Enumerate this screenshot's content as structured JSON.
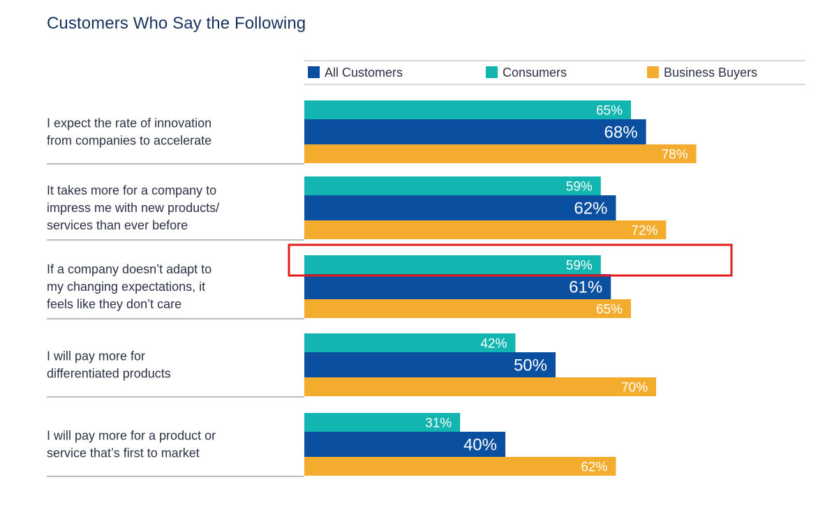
{
  "chart_data": {
    "type": "bar",
    "orientation": "horizontal",
    "title": "Customers Who Say the Following",
    "xlim": [
      0,
      100
    ],
    "categories": [
      [
        "I expect the rate of innovation",
        "from companies to accelerate"
      ],
      [
        "It takes more for a company to",
        "impress me with new products/",
        "services than ever before"
      ],
      [
        "If a company doesn’t adapt to",
        "my changing expectations, it",
        "feels like they don’t care"
      ],
      [
        "I will pay more for",
        "differentiated products"
      ],
      [
        "I will pay more for a product or",
        "service that’s first to market"
      ]
    ],
    "series": [
      {
        "name": "Consumers",
        "color": "#12b5b0",
        "values": [
          65,
          59,
          59,
          42,
          31
        ]
      },
      {
        "name": "All Customers",
        "color": "#0b4fa1",
        "values": [
          68,
          62,
          61,
          50,
          40
        ]
      },
      {
        "name": "Business Buyers",
        "color": "#f4ac2f",
        "values": [
          78,
          72,
          65,
          70,
          62
        ]
      }
    ],
    "legend": [
      {
        "name": "All Customers",
        "color": "#0b4fa1"
      },
      {
        "name": "Consumers",
        "color": "#12b5b0"
      },
      {
        "name": "Business Buyers",
        "color": "#f4ac2f"
      }
    ],
    "value_suffix": "%",
    "highlight": {
      "category_index": 2,
      "series": "Consumers",
      "color": "#e31b1b"
    }
  }
}
